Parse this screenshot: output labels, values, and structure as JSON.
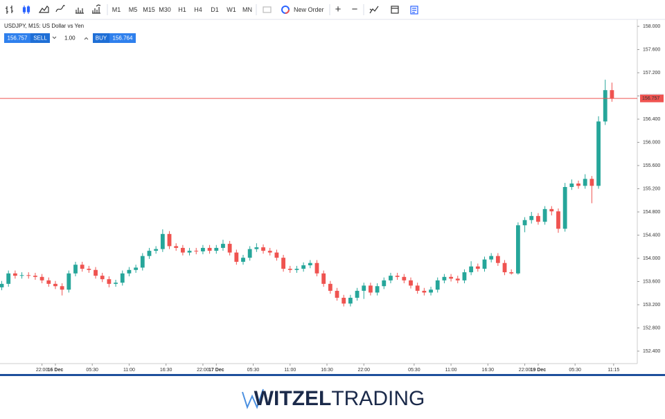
{
  "toolbar": {
    "timeframes": [
      "M1",
      "M5",
      "M15",
      "M30",
      "H1",
      "H4",
      "D1",
      "W1",
      "MN"
    ],
    "new_order": "New Order",
    "plus": "+",
    "minus": "−"
  },
  "trade_panel": {
    "sell": "SELL",
    "volume": "1.00",
    "buy": "BUY"
  },
  "chart_data": {
    "type": "candlestick",
    "title": "USDJPY, M15: US Dollar vs Yen",
    "x": [
      -8,
      -7,
      -6,
      -5,
      -4,
      -3,
      -2,
      -1,
      0,
      1,
      2,
      3,
      4,
      5,
      6,
      7,
      8,
      9,
      10,
      11,
      12,
      13,
      14,
      15,
      16,
      17,
      18,
      19,
      20,
      21,
      22,
      23,
      24,
      25,
      26,
      27,
      28,
      29,
      30,
      31,
      32,
      33,
      34,
      35,
      36,
      37,
      38,
      39,
      40,
      41,
      42,
      43,
      44,
      45,
      46,
      47,
      48,
      49,
      50,
      51,
      52,
      53,
      54,
      55,
      56,
      57,
      58,
      59,
      60,
      61,
      62,
      63,
      64,
      65,
      66,
      67,
      68,
      69,
      70,
      71,
      72,
      73,
      74,
      75,
      76,
      77,
      78,
      79,
      80,
      81,
      82,
      83
    ],
    "open": [
      153.5,
      153.56,
      153.74,
      153.7,
      153.71,
      153.7,
      153.68,
      153.62,
      153.56,
      153.52,
      153.46,
      153.74,
      153.89,
      153.82,
      153.8,
      153.7,
      153.64,
      153.56,
      153.58,
      153.74,
      153.8,
      153.84,
      154.04,
      154.13,
      154.16,
      154.42,
      154.21,
      154.18,
      154.1,
      154.13,
      154.12,
      154.18,
      154.13,
      154.18,
      154.25,
      154.1,
      153.94,
      154.01,
      154.16,
      154.19,
      154.13,
      154.1,
      154.01,
      153.82,
      153.8,
      153.82,
      153.88,
      153.92,
      153.74,
      153.56,
      153.44,
      153.32,
      153.22,
      153.32,
      153.44,
      153.53,
      153.41,
      153.52,
      153.62,
      153.7,
      153.68,
      153.62,
      153.53,
      153.44,
      153.41,
      153.46,
      153.62,
      153.68,
      153.65,
      153.62,
      153.76,
      153.86,
      153.82,
      153.98,
      154.04,
      153.92,
      153.76,
      153.74,
      154.57,
      154.66,
      154.73,
      154.63,
      154.85,
      154.81,
      154.51,
      155.23,
      155.29,
      155.25,
      155.37,
      155.25,
      156.36,
      156.9
    ],
    "high": [
      153.61,
      153.79,
      153.79,
      153.76,
      153.76,
      153.75,
      153.73,
      153.67,
      153.61,
      153.57,
      153.79,
      153.94,
      153.94,
      153.87,
      153.85,
      153.75,
      153.69,
      153.63,
      153.79,
      153.85,
      153.89,
      154.09,
      154.18,
      154.21,
      154.5,
      154.47,
      154.26,
      154.23,
      154.18,
      154.18,
      154.23,
      154.23,
      154.23,
      154.32,
      154.3,
      154.15,
      154.06,
      154.21,
      154.26,
      154.24,
      154.18,
      154.15,
      154.06,
      153.87,
      153.87,
      153.93,
      153.97,
      153.97,
      153.79,
      153.61,
      153.49,
      153.37,
      153.37,
      153.49,
      153.58,
      153.58,
      153.57,
      153.67,
      153.75,
      153.75,
      153.73,
      153.67,
      153.58,
      153.49,
      153.51,
      153.67,
      153.73,
      153.73,
      153.7,
      153.81,
      153.95,
      153.91,
      154.03,
      154.09,
      154.09,
      153.97,
      153.81,
      154.62,
      154.71,
      154.8,
      154.78,
      154.9,
      154.9,
      154.86,
      155.3,
      155.36,
      155.34,
      155.45,
      155.42,
      156.45,
      157.08,
      157.03
    ],
    "low": [
      153.45,
      153.51,
      153.65,
      153.65,
      153.65,
      153.63,
      153.57,
      153.51,
      153.47,
      153.36,
      153.41,
      153.69,
      153.77,
      153.75,
      153.65,
      153.59,
      153.5,
      153.51,
      153.53,
      153.69,
      153.75,
      153.79,
      153.99,
      154.08,
      154.11,
      154.16,
      154.13,
      154.05,
      154.05,
      154.07,
      154.07,
      154.08,
      154.08,
      154.13,
      154.05,
      153.89,
      153.89,
      153.96,
      154.11,
      154.08,
      154.05,
      153.96,
      153.77,
      153.75,
      153.75,
      153.77,
      153.83,
      153.69,
      153.51,
      153.39,
      153.27,
      153.17,
      153.17,
      153.27,
      153.3,
      153.36,
      153.36,
      153.47,
      153.57,
      153.63,
      153.57,
      153.48,
      153.39,
      153.36,
      153.36,
      153.41,
      153.57,
      153.6,
      153.57,
      153.57,
      153.71,
      153.77,
      153.77,
      153.93,
      153.87,
      153.71,
      153.72,
      153.72,
      154.45,
      154.6,
      154.58,
      154.58,
      154.74,
      154.44,
      154.46,
      155.18,
      155.2,
      155.2,
      154.95,
      155.2,
      156.3,
      156.7
    ],
    "close": [
      153.56,
      153.74,
      153.7,
      153.71,
      153.7,
      153.68,
      153.62,
      153.56,
      153.52,
      153.46,
      153.74,
      153.89,
      153.82,
      153.8,
      153.7,
      153.64,
      153.56,
      153.58,
      153.74,
      153.8,
      153.84,
      154.04,
      154.13,
      154.16,
      154.42,
      154.21,
      154.18,
      154.1,
      154.13,
      154.12,
      154.18,
      154.13,
      154.18,
      154.25,
      154.1,
      153.94,
      154.01,
      154.16,
      154.19,
      154.13,
      154.1,
      154.01,
      153.82,
      153.8,
      153.82,
      153.88,
      153.92,
      153.74,
      153.56,
      153.44,
      153.32,
      153.22,
      153.32,
      153.44,
      153.53,
      153.41,
      153.52,
      153.62,
      153.7,
      153.68,
      153.62,
      153.53,
      153.44,
      153.41,
      153.46,
      153.62,
      153.68,
      153.65,
      153.62,
      153.76,
      153.86,
      153.82,
      153.98,
      154.04,
      153.92,
      153.76,
      153.74,
      154.57,
      154.66,
      154.73,
      154.63,
      154.85,
      154.81,
      154.51,
      155.23,
      155.29,
      155.25,
      155.37,
      155.25,
      156.36,
      156.9,
      156.76
    ],
    "up_color": "#26a69a",
    "down_color": "#ef5350",
    "bid": 156.757,
    "ask": 156.764,
    "bid_color": "#ef5350",
    "ask_color": "#e0e3eb",
    "xlim": [
      -8.26,
      86.78
    ],
    "xticks": [
      {
        "value": -2,
        "label": "22:00"
      },
      {
        "value": 0,
        "label": "16 Dec"
      },
      {
        "value": 5.5,
        "label": "05:30"
      },
      {
        "value": 11,
        "label": "11:00"
      },
      {
        "value": 16.5,
        "label": "16:30"
      },
      {
        "value": 22,
        "label": "22:00"
      },
      {
        "value": 24,
        "label": "17 Dec"
      },
      {
        "value": 29.5,
        "label": "05:30"
      },
      {
        "value": 35,
        "label": "11:00"
      },
      {
        "value": 40.5,
        "label": "16:30"
      },
      {
        "value": 46,
        "label": "22:00"
      },
      {
        "value": 53.5,
        "label": "05:30"
      },
      {
        "value": 59,
        "label": "11:00"
      },
      {
        "value": 64.5,
        "label": "16:30"
      },
      {
        "value": 70,
        "label": "22:00"
      },
      {
        "value": 72,
        "label": "19 Dec"
      },
      {
        "value": 77.5,
        "label": "05:30"
      },
      {
        "value": 83.25,
        "label": "11:15"
      }
    ],
    "ylim": [
      152.185,
      158.12
    ],
    "yticks": [
      {
        "value": 152.4,
        "label": "152.400"
      },
      {
        "value": 152.8,
        "label": "152.800"
      },
      {
        "value": 153.2,
        "label": "153.200"
      },
      {
        "value": 153.6,
        "label": "153.600"
      },
      {
        "value": 154.0,
        "label": "154.000"
      },
      {
        "value": 154.4,
        "label": "154.400"
      },
      {
        "value": 154.8,
        "label": "154.800"
      },
      {
        "value": 155.2,
        "label": "155.200"
      },
      {
        "value": 155.6,
        "label": "155.600"
      },
      {
        "value": 156.0,
        "label": "156.000"
      },
      {
        "value": 156.4,
        "label": "156.400"
      },
      {
        "value": 156.8,
        "label": "156.800"
      },
      {
        "value": 157.2,
        "label": "157.200"
      },
      {
        "value": 157.6,
        "label": "157.600"
      },
      {
        "value": 158.0,
        "label": "158.000"
      }
    ],
    "grid": false
  },
  "footer": {
    "brand_bold": "WITZEL",
    "brand_light": "TRADING"
  }
}
